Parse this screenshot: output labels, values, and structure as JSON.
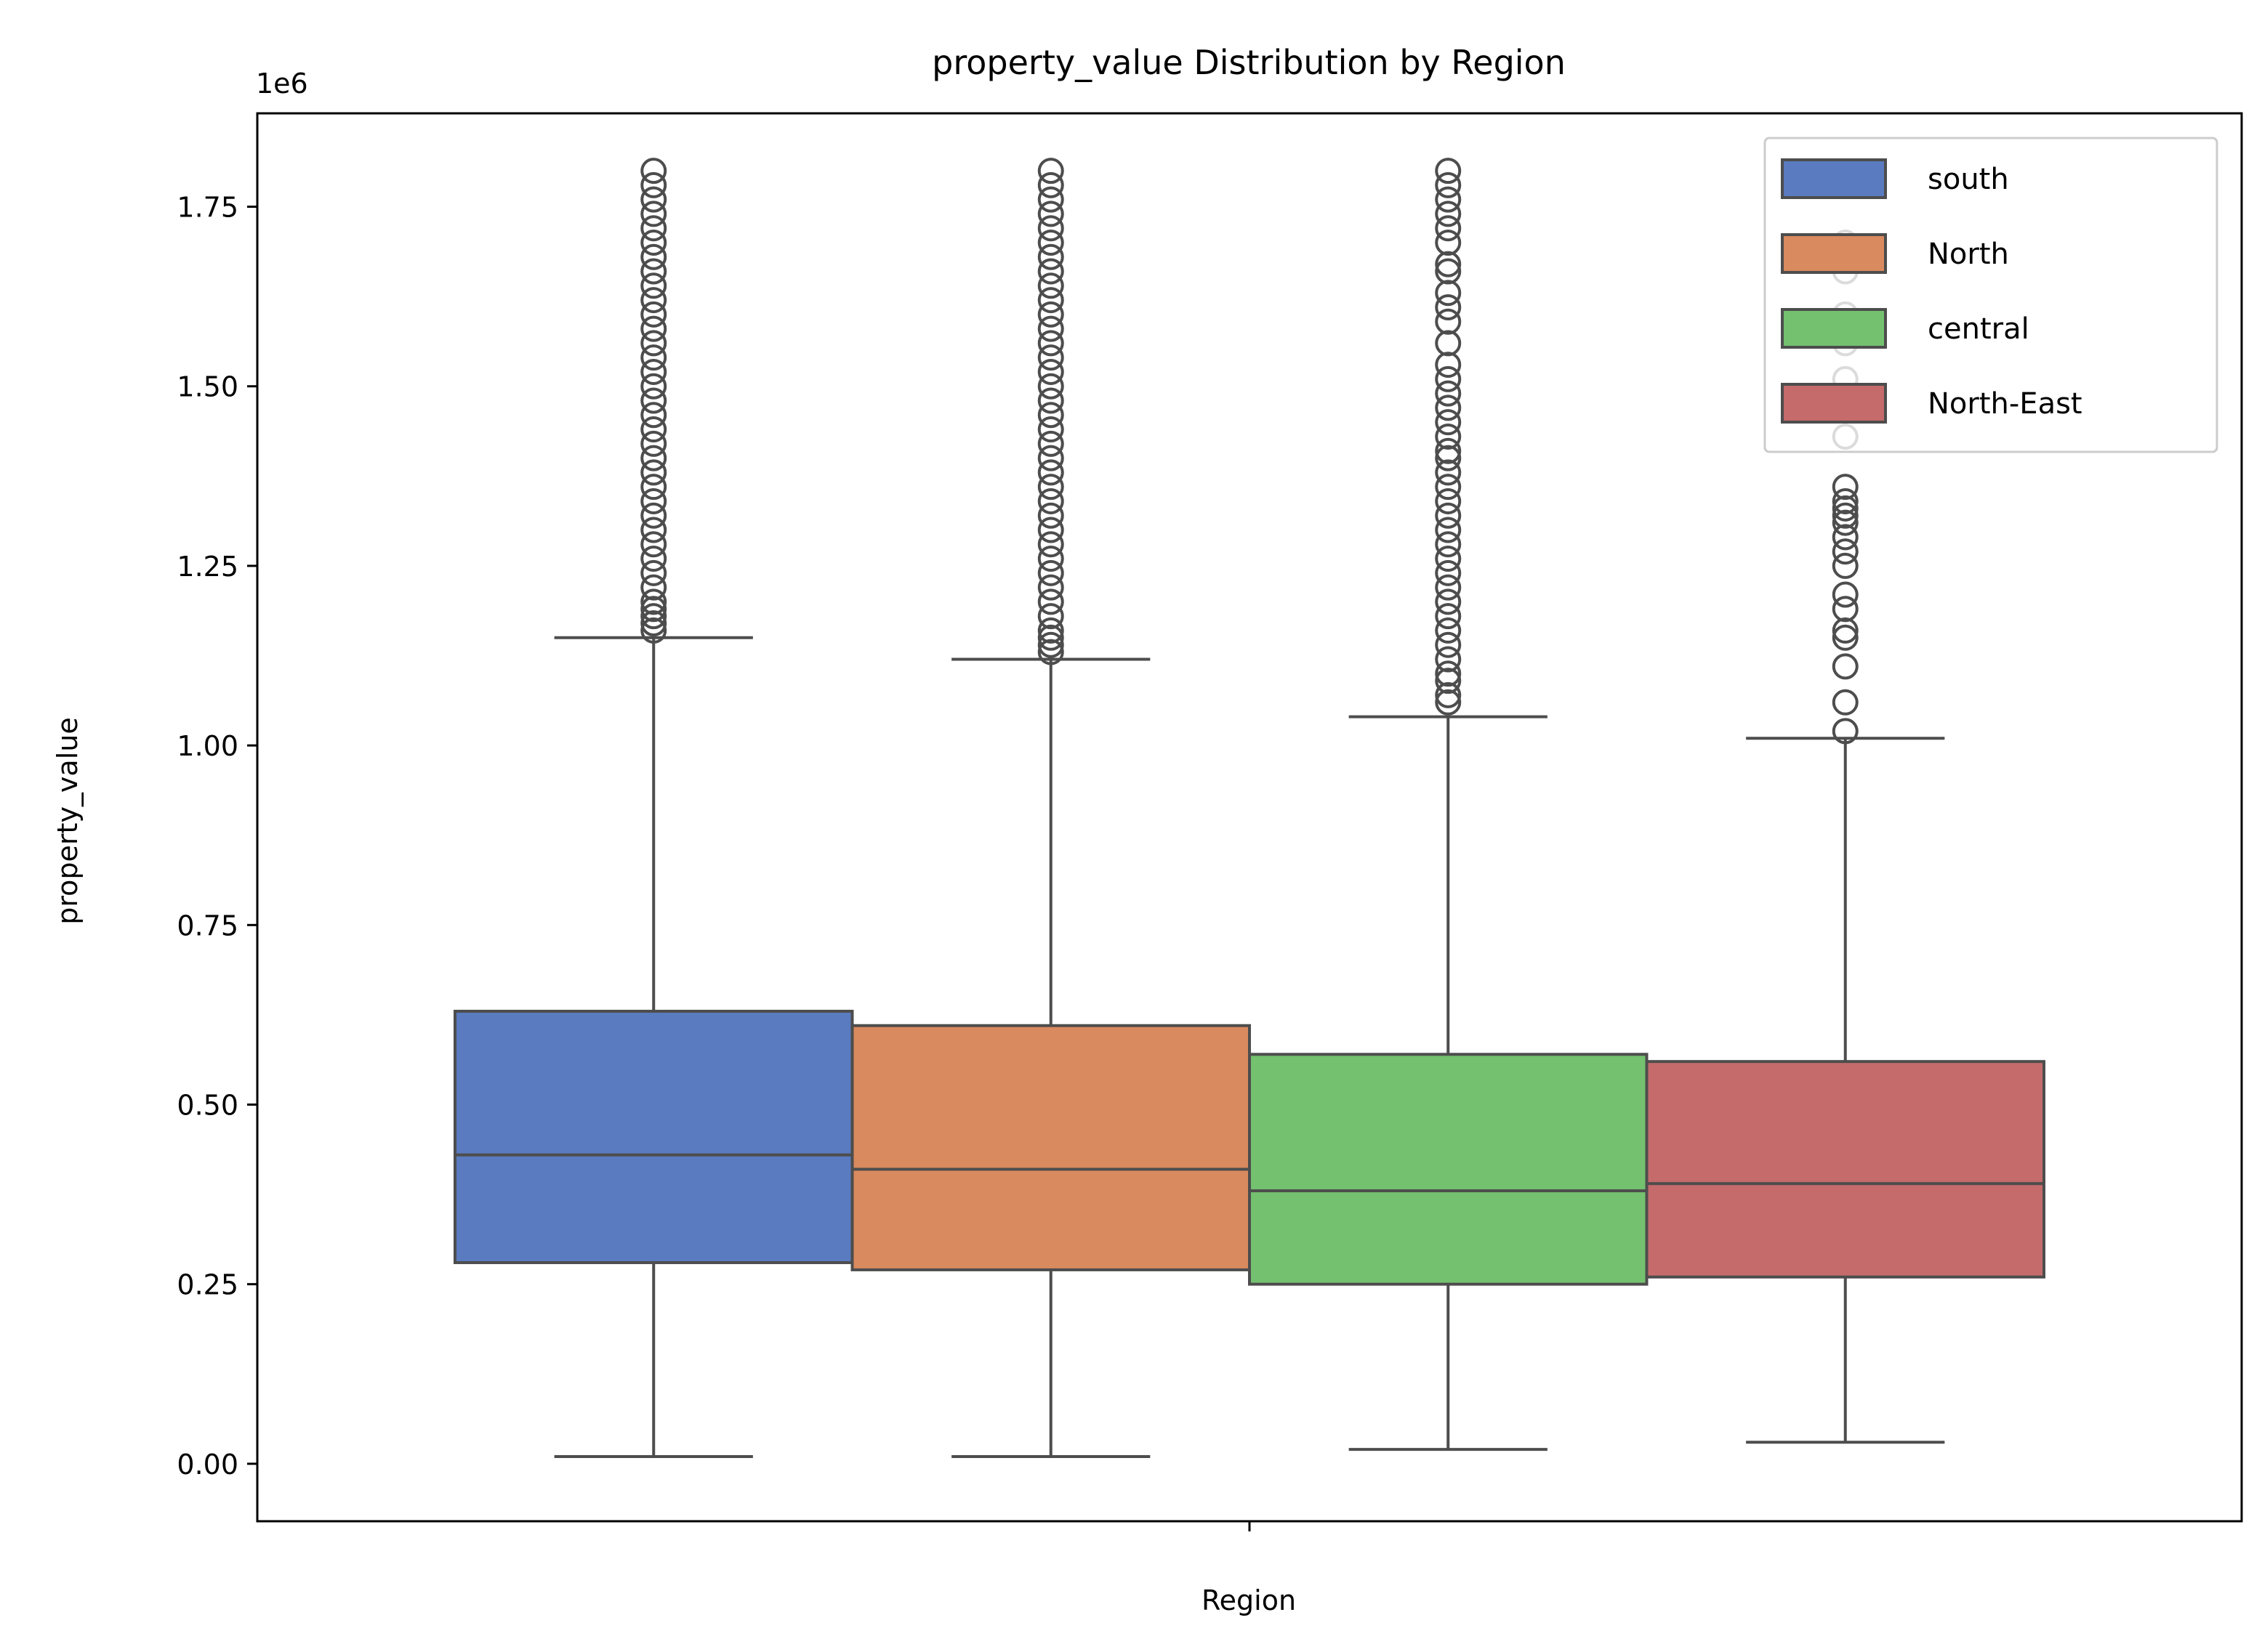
{
  "chart_data": {
    "type": "boxplot",
    "title": "property_value Distribution by Region",
    "xlabel": "Region",
    "ylabel": "property_value",
    "y_offset_label": "1e6",
    "y_scale_factor": 1000000,
    "ylim": [
      -0.08,
      1.88
    ],
    "yticks": [
      0.0,
      0.25,
      0.5,
      0.75,
      1.0,
      1.25,
      1.5,
      1.75
    ],
    "ytick_labels": [
      "0.00",
      "0.25",
      "0.50",
      "0.75",
      "1.00",
      "1.25",
      "1.50",
      "1.75"
    ],
    "grid": false,
    "legend_position": "top-right",
    "series": [
      {
        "name": "south",
        "color": "#5a7bbf",
        "whisker_low": 0.01,
        "q1": 0.28,
        "median": 0.43,
        "q3": 0.63,
        "whisker_high": 1.15,
        "outliers": [
          1.16,
          1.17,
          1.18,
          1.19,
          1.2,
          1.22,
          1.24,
          1.26,
          1.28,
          1.3,
          1.32,
          1.34,
          1.36,
          1.38,
          1.4,
          1.42,
          1.44,
          1.46,
          1.48,
          1.5,
          1.52,
          1.54,
          1.56,
          1.58,
          1.6,
          1.62,
          1.64,
          1.66,
          1.68,
          1.7,
          1.72,
          1.74,
          1.76,
          1.78,
          1.8
        ]
      },
      {
        "name": "North",
        "color": "#d98a5e",
        "whisker_low": 0.01,
        "q1": 0.27,
        "median": 0.41,
        "q3": 0.61,
        "whisker_high": 1.12,
        "outliers": [
          1.13,
          1.14,
          1.15,
          1.16,
          1.18,
          1.2,
          1.22,
          1.24,
          1.26,
          1.28,
          1.3,
          1.32,
          1.34,
          1.36,
          1.38,
          1.4,
          1.42,
          1.44,
          1.46,
          1.48,
          1.5,
          1.52,
          1.54,
          1.56,
          1.58,
          1.6,
          1.62,
          1.64,
          1.66,
          1.68,
          1.7,
          1.72,
          1.74,
          1.76,
          1.78,
          1.8
        ]
      },
      {
        "name": "central",
        "color": "#74c16f",
        "whisker_low": 0.02,
        "q1": 0.25,
        "median": 0.38,
        "q3": 0.57,
        "whisker_high": 1.04,
        "outliers": [
          1.06,
          1.07,
          1.09,
          1.1,
          1.12,
          1.14,
          1.16,
          1.18,
          1.2,
          1.22,
          1.24,
          1.26,
          1.28,
          1.3,
          1.32,
          1.34,
          1.36,
          1.38,
          1.4,
          1.41,
          1.43,
          1.45,
          1.47,
          1.49,
          1.51,
          1.53,
          1.56,
          1.59,
          1.61,
          1.63,
          1.66,
          1.67,
          1.7,
          1.72,
          1.74,
          1.76,
          1.78,
          1.8
        ]
      },
      {
        "name": "North-East",
        "color": "#c56b6b",
        "whisker_low": 0.03,
        "q1": 0.26,
        "median": 0.39,
        "q3": 0.56,
        "whisker_high": 1.01,
        "outliers": [
          1.02,
          1.06,
          1.11,
          1.15,
          1.16,
          1.19,
          1.21,
          1.25,
          1.27,
          1.29,
          1.31,
          1.32,
          1.33,
          1.34,
          1.36,
          1.43,
          1.47,
          1.51,
          1.56,
          1.6,
          1.66,
          1.7
        ]
      }
    ]
  }
}
